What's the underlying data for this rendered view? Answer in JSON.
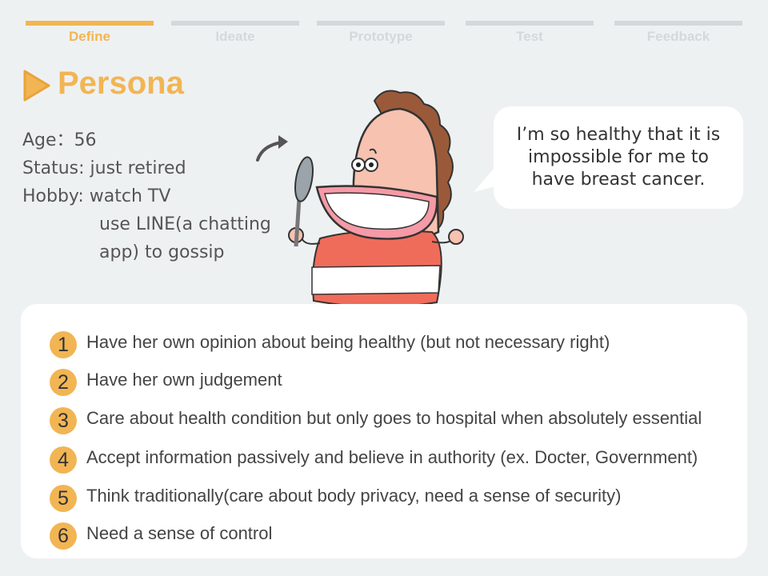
{
  "nav": {
    "steps": [
      {
        "label": "Define",
        "active": true
      },
      {
        "label": "Ideate",
        "active": false
      },
      {
        "label": "Prototype",
        "active": false
      },
      {
        "label": "Test",
        "active": false
      },
      {
        "label": "Feedback",
        "active": false
      }
    ],
    "active_color": "#f2b553",
    "inactive_color": "#d3d9db"
  },
  "header": {
    "title": "Persona",
    "icon": "play-triangle-icon"
  },
  "persona": {
    "age": "Age：56",
    "status": "Status: just retired",
    "hobby_1": "Hobby:  watch TV",
    "hobby_2": "use LINE(a chatting",
    "hobby_3": "app) to gossip"
  },
  "quote": {
    "line1": "I’m so healthy that it is",
    "line2": "impossible for me to",
    "line3": "have breast cancer."
  },
  "traits": [
    {
      "num": "1",
      "text": "Have her own opinion about being healthy (but not necessary right)"
    },
    {
      "num": "2",
      "text": "Have her own judgement"
    },
    {
      "num": "3",
      "text": "Care about health condition but only goes to hospital when absolutely essential"
    },
    {
      "num": "4",
      "text": "Accept information passively and believe in authority (ex. Docter, Government)"
    },
    {
      "num": "5",
      "text": "Think traditionally(care about body privacy, need a sense of security)"
    },
    {
      "num": "6",
      "text": "Need a sense of control"
    }
  ]
}
